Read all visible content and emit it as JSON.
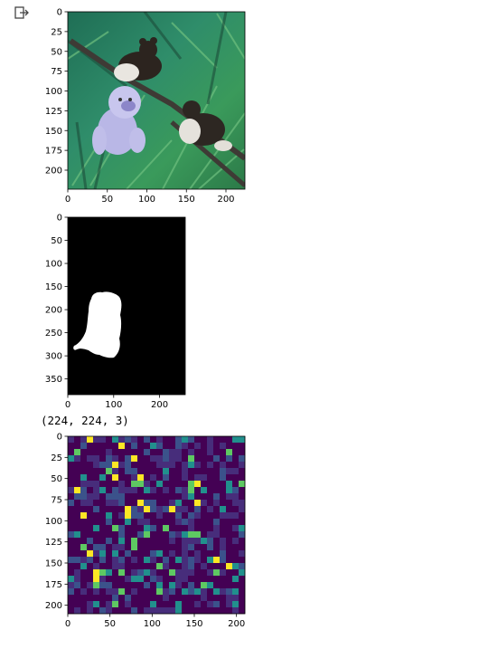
{
  "cell": {
    "output_icon": "output-arrow-icon"
  },
  "printed_output": {
    "shape_text": "(224, 224, 3)"
  },
  "images": [
    {
      "subject": "photo of a monkey and two lemurs in a leafy jungle",
      "x_ticks": [
        "0",
        "50",
        "100",
        "150",
        "200"
      ],
      "y_ticks": [
        "0",
        "25",
        "50",
        "75",
        "100",
        "125",
        "150",
        "175",
        "200"
      ]
    },
    {
      "subject": "binary segmentation mask of the monkey (white silhouette on black)",
      "x_ticks": [
        "0",
        "100",
        "200"
      ],
      "y_ticks": [
        "0",
        "50",
        "100",
        "150",
        "200",
        "250",
        "300",
        "350"
      ]
    },
    {
      "subject": "heatmap in viridis colours",
      "x_ticks": [
        "0",
        "50",
        "100",
        "150",
        "200"
      ],
      "y_ticks": [
        "0",
        "25",
        "50",
        "75",
        "100",
        "125",
        "150",
        "175",
        "200"
      ]
    }
  ],
  "colors": {
    "viridis_dark": "#440154",
    "viridis_purple": "#472d7b",
    "viridis_blue": "#3b528b",
    "viridis_teal": "#21908d",
    "viridis_green": "#5ec962",
    "viridis_yellow": "#fde725"
  }
}
